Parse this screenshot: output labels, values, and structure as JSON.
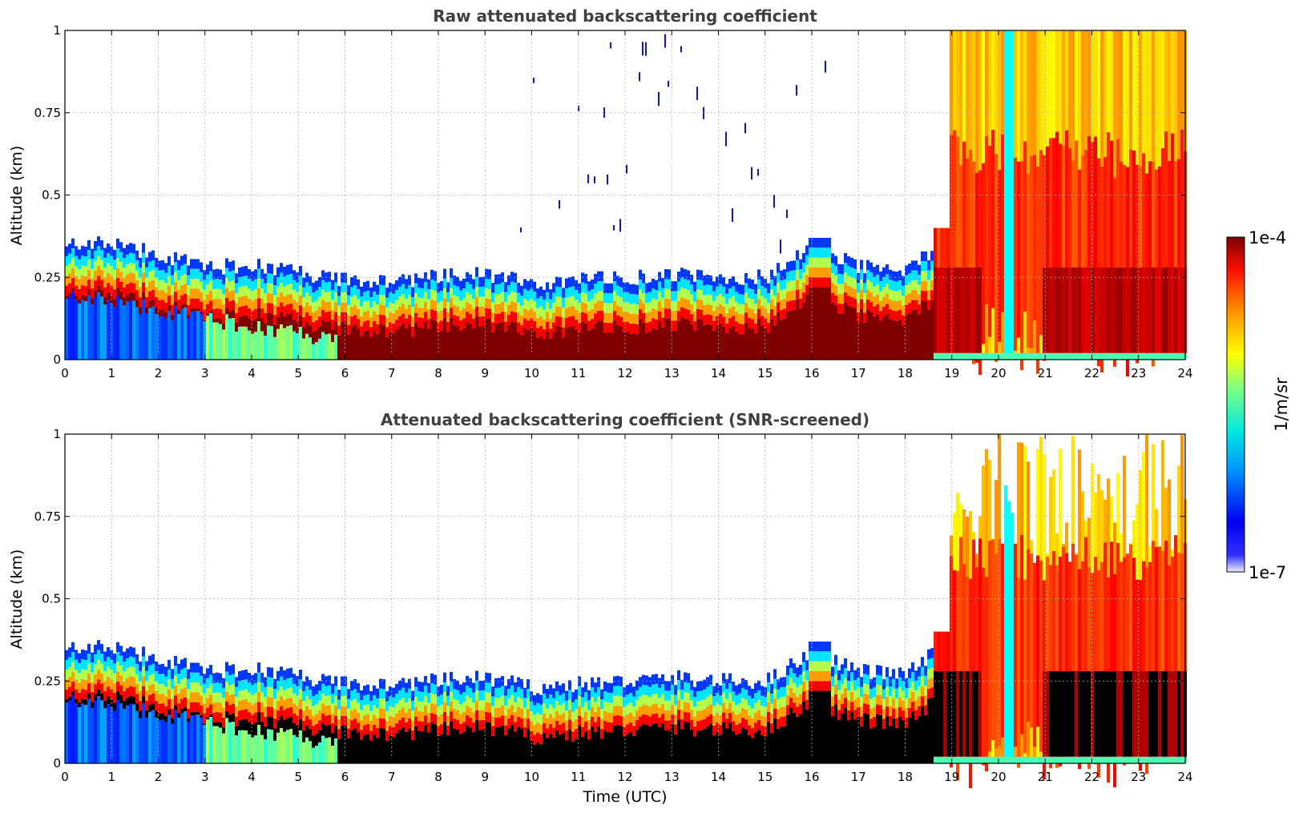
{
  "chart_data": [
    {
      "type": "heatmap",
      "id": "raw",
      "title": "Raw attenuated backscattering coefficient",
      "xlabel": "",
      "ylabel": "Altitude (km)",
      "xlim": [
        0,
        24
      ],
      "ylim": [
        0,
        1
      ],
      "xticks": [
        "0",
        "1",
        "2",
        "3",
        "4",
        "5",
        "6",
        "7",
        "8",
        "9",
        "10",
        "11",
        "12",
        "13",
        "14",
        "15",
        "16",
        "17",
        "18",
        "19",
        "20",
        "21",
        "22",
        "23",
        "24"
      ],
      "yticks": [
        "0",
        "0.25",
        "0.5",
        "0.75",
        "1"
      ],
      "grid": true,
      "screened": false,
      "features": {
        "boundary_layer_top_km_by_hour": [
          0.36,
          0.35,
          0.32,
          0.28,
          0.29,
          0.26,
          0.24,
          0.24,
          0.25,
          0.26,
          0.23,
          0.24,
          0.25,
          0.26,
          0.25,
          0.25,
          0.34,
          0.28,
          0.27,
          0.38,
          1.0,
          1.0,
          1.0,
          1.0,
          1.0
        ],
        "sparse_noise_region_hours": [
          9.5,
          16.5
        ],
        "cloud_region_hours": [
          18.5,
          24
        ],
        "clear_gap_hour": 20.2
      }
    },
    {
      "type": "heatmap",
      "id": "screened",
      "title": "Attenuated backscattering coefficient (SNR-screened)",
      "xlabel": "Time (UTC)",
      "ylabel": "Altitude (km)",
      "xlim": [
        0,
        24
      ],
      "ylim": [
        0,
        1
      ],
      "xticks": [
        "0",
        "1",
        "2",
        "3",
        "4",
        "5",
        "6",
        "7",
        "8",
        "9",
        "10",
        "11",
        "12",
        "13",
        "14",
        "15",
        "16",
        "17",
        "18",
        "19",
        "20",
        "21",
        "22",
        "23",
        "24"
      ],
      "yticks": [
        "0",
        "0.25",
        "0.5",
        "0.75",
        "1"
      ],
      "grid": true,
      "screened": true,
      "masked_color": "#000000"
    }
  ],
  "colorbar": {
    "label": "1/m/sr",
    "max_label": "1e-4",
    "min_label": "1e-7",
    "colormap": "jet",
    "colors": [
      "#e8e8ff",
      "#0000ff",
      "#00c8ff",
      "#40ffb0",
      "#ffff00",
      "#ff8000",
      "#ff0000",
      "#800000"
    ]
  }
}
